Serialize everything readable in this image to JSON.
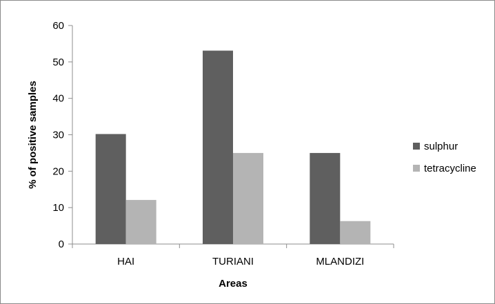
{
  "chart_data": {
    "type": "bar",
    "title": "",
    "xlabel": "Areas",
    "ylabel": "% of positive samples",
    "categories": [
      "HAI",
      "TURIANI",
      "MLANDIZI"
    ],
    "series": [
      {
        "name": "sulphur",
        "values": [
          30.2,
          53.1,
          25.0
        ],
        "color": "#5f5f5f"
      },
      {
        "name": "tetracycline",
        "values": [
          12.1,
          25.0,
          6.3
        ],
        "color": "#b4b4b4"
      }
    ],
    "ylim": [
      0,
      60
    ],
    "yticks": [
      "0",
      "10",
      "20",
      "30",
      "40",
      "50",
      "60"
    ],
    "grid": false,
    "legend_position": "right"
  }
}
